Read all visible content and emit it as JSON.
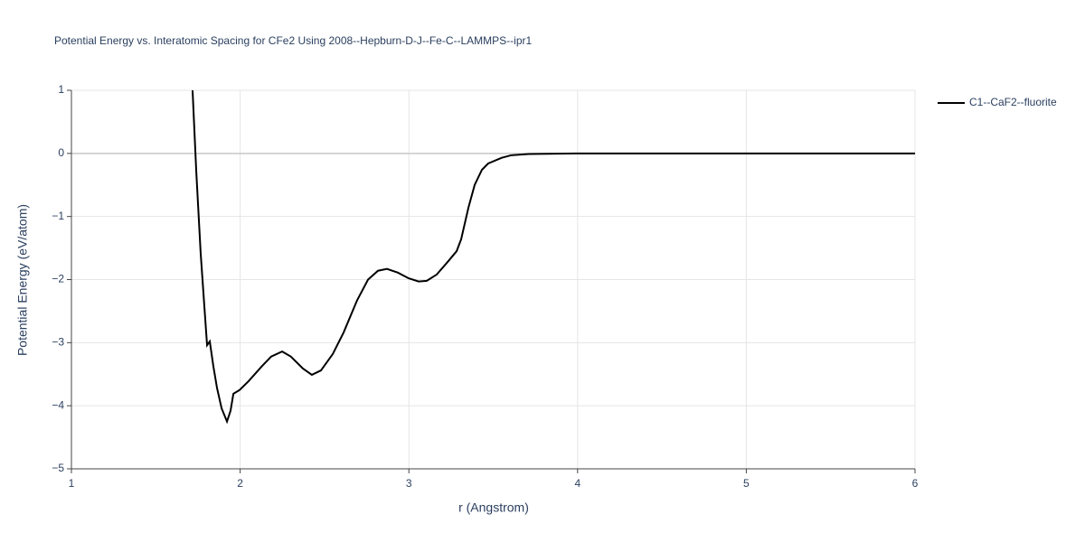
{
  "chart_data": {
    "type": "line",
    "title": "Potential Energy vs. Interatomic Spacing for CFe2 Using 2008--Hepburn-D-J--Fe-C--LAMMPS--ipr1",
    "x_label": "r (Angstrom)",
    "y_label": "Potential Energy (eV/atom)",
    "xlim": [
      1,
      6
    ],
    "ylim": [
      -5,
      1
    ],
    "xticks": [
      1,
      2,
      3,
      4,
      5,
      6
    ],
    "yticks": [
      {
        "value": -5,
        "label": "−5"
      },
      {
        "value": -4,
        "label": "−4"
      },
      {
        "value": -3,
        "label": "−3"
      },
      {
        "value": -2,
        "label": "−2"
      },
      {
        "value": -1,
        "label": "−1"
      },
      0,
      1
    ],
    "grid": true,
    "legend": "top-right",
    "x": [
      1.718,
      1.74,
      1.766,
      1.788,
      1.804,
      1.82,
      1.841,
      1.863,
      1.89,
      1.922,
      1.943,
      1.96,
      1.997,
      2.05,
      2.13,
      2.184,
      2.249,
      2.3,
      2.372,
      2.425,
      2.479,
      2.549,
      2.613,
      2.693,
      2.758,
      2.817,
      2.87,
      2.935,
      2.999,
      3.058,
      3.106,
      3.165,
      3.23,
      3.283,
      3.31,
      3.353,
      3.39,
      3.433,
      3.47,
      3.55,
      3.605,
      3.71,
      4.0,
      5.0,
      6.0
    ],
    "series": [
      {
        "name": "C1--CaF2--fluorite",
        "color": "#000000",
        "values": [
          1,
          -0.29,
          -1.58,
          -2.43,
          -3.04,
          -2.98,
          -3.37,
          -3.72,
          -4.04,
          -4.25,
          -4.08,
          -3.81,
          -3.75,
          -3.61,
          -3.37,
          -3.22,
          -3.14,
          -3.22,
          -3.41,
          -3.51,
          -3.44,
          -3.18,
          -2.84,
          -2.33,
          -2.0,
          -1.86,
          -1.83,
          -1.89,
          -1.98,
          -2.03,
          -2.02,
          -1.92,
          -1.72,
          -1.55,
          -1.36,
          -0.86,
          -0.5,
          -0.26,
          -0.16,
          -0.07,
          -0.03,
          -0.01,
          0,
          0,
          0
        ]
      }
    ]
  }
}
